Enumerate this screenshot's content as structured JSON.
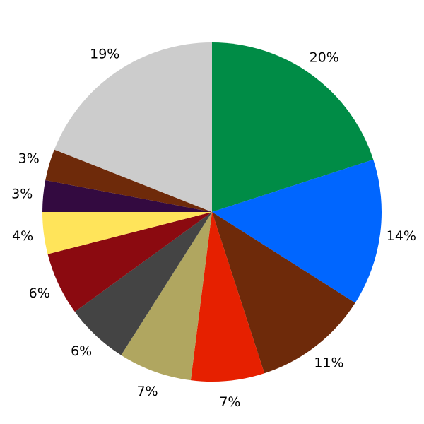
{
  "chart_data": {
    "type": "pie",
    "start": "top",
    "direction": "clockwise",
    "values": [
      20,
      14,
      11,
      7,
      7,
      6,
      6,
      4,
      3,
      3,
      19
    ],
    "labels": [
      "20%",
      "14%",
      "11%",
      "7%",
      "7%",
      "6%",
      "6%",
      "4%",
      "3%",
      "3%",
      "19%"
    ],
    "colors": [
      "#008c46",
      "#0066ff",
      "#6e2a0a",
      "#e62000",
      "#b0a660",
      "#444444",
      "#8b0a10",
      "#ffe45a",
      "#330a40",
      "#6e2a0a",
      "#cccccc"
    ]
  }
}
